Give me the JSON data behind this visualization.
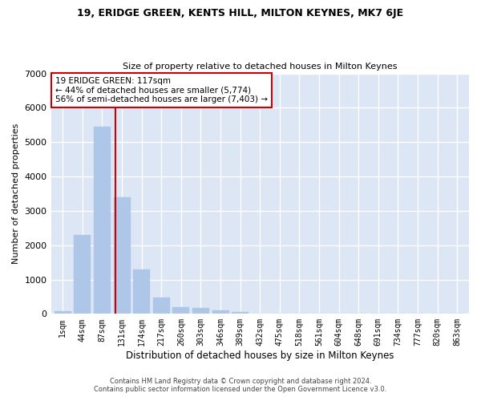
{
  "title1": "19, ERIDGE GREEN, KENTS HILL, MILTON KEYNES, MK7 6JE",
  "title2": "Size of property relative to detached houses in Milton Keynes",
  "xlabel": "Distribution of detached houses by size in Milton Keynes",
  "ylabel": "Number of detached properties",
  "bar_labels": [
    "1sqm",
    "44sqm",
    "87sqm",
    "131sqm",
    "174sqm",
    "217sqm",
    "260sqm",
    "303sqm",
    "346sqm",
    "389sqm",
    "432sqm",
    "475sqm",
    "518sqm",
    "561sqm",
    "604sqm",
    "648sqm",
    "691sqm",
    "734sqm",
    "777sqm",
    "820sqm",
    "863sqm"
  ],
  "bar_values": [
    80,
    2300,
    5450,
    3400,
    1300,
    480,
    200,
    180,
    100,
    60,
    0,
    0,
    0,
    0,
    0,
    0,
    0,
    0,
    0,
    0,
    0
  ],
  "bar_color": "#aec6e8",
  "bar_edgecolor": "#aec6e8",
  "vline_x": 2.68,
  "vline_color": "#cc0000",
  "annotation_text": "19 ERIDGE GREEN: 117sqm\n← 44% of detached houses are smaller (5,774)\n56% of semi-detached houses are larger (7,403) →",
  "annotation_box_color": "#ffffff",
  "annotation_box_edgecolor": "#cc0000",
  "ylim": [
    0,
    7000
  ],
  "yticks": [
    0,
    1000,
    2000,
    3000,
    4000,
    5000,
    6000,
    7000
  ],
  "bg_color": "#dce6f5",
  "grid_color": "#ffffff",
  "fig_bg_color": "#ffffff",
  "footer1": "Contains HM Land Registry data © Crown copyright and database right 2024.",
  "footer2": "Contains public sector information licensed under the Open Government Licence v3.0."
}
